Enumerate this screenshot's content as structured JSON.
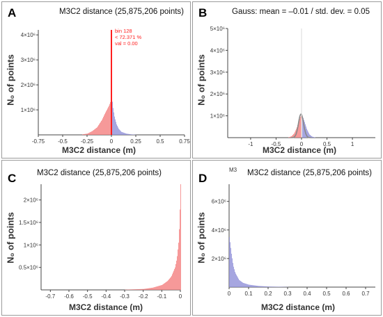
{
  "colors": {
    "red": "#ff1f1f",
    "red_fill": "#f48080",
    "blue_fill": "#9090d8",
    "blue_line": "#6a6ab8",
    "gauss": "#888888"
  },
  "panels": [
    {
      "letter": "A",
      "title": "M3C2 distance (25,875,206 points)",
      "ylabel": "N₀ of points",
      "xlabel": "M3C2 distance (m)",
      "annotations": [
        "bin 128",
        "< 72.371 %",
        "val = 0.00"
      ]
    },
    {
      "letter": "B",
      "title": "Gauss: mean = –0.01 / std. dev. = 0.05",
      "ylabel": "N₀ of points",
      "xlabel": "M3C2 distance (m)"
    },
    {
      "letter": "C",
      "title": "M3C2 distance (25,875,206 points)",
      "ylabel": "N₀ of points",
      "xlabel": "M3C2 distance (m)"
    },
    {
      "letter": "D",
      "tag": "M3",
      "title": "M3C2 distance (25,875,206 points)",
      "ylabel": "N₀ of points",
      "xlabel": "M3C2 distance (m)"
    }
  ],
  "chart_data": [
    {
      "type": "bar",
      "title": "M3C2 distance (25,875,206 points)",
      "xlabel": "M3C2 distance (m)",
      "ylabel": "N₀ of points",
      "xlim": [
        -0.75,
        0.75
      ],
      "ylim": [
        0,
        4200000
      ],
      "xticks": [
        "-0.75",
        "-0.5",
        "-0.25",
        "0",
        "0.25",
        "0.5",
        "0.75"
      ],
      "xtick_values": [
        -0.75,
        -0.5,
        -0.25,
        0,
        0.25,
        0.5,
        0.75
      ],
      "yticks": [
        "1×10⁶",
        "2×10⁶",
        "3×10⁶",
        "4×10⁶"
      ],
      "ytick_values": [
        1000000,
        2000000,
        3000000,
        4000000
      ],
      "peak": {
        "x": 0.0,
        "y": 4200000
      },
      "series": [
        {
          "color": "red",
          "x": [
            -0.3,
            -0.25,
            -0.2,
            -0.15,
            -0.1,
            -0.07,
            -0.05,
            -0.03,
            -0.015,
            -0.005
          ],
          "y": [
            20000,
            50000,
            150000,
            300000,
            600000,
            850000,
            1000000,
            1150000,
            1300000,
            1450000
          ]
        },
        {
          "color": "blue",
          "x": [
            0.005,
            0.015,
            0.03,
            0.05,
            0.07,
            0.1,
            0.15,
            0.2,
            0.25
          ],
          "y": [
            1400000,
            1050000,
            700000,
            420000,
            250000,
            120000,
            50000,
            20000,
            5000
          ]
        }
      ]
    },
    {
      "type": "bar",
      "title": "Gauss: mean = –0.01 / std. dev. = 0.05",
      "xlabel": "M3C2 distance (m)",
      "ylabel": "N₀ of points",
      "xlim": [
        -1.45,
        1.45
      ],
      "ylim": [
        0,
        5000000
      ],
      "xticks": [
        "-1",
        "-0.5",
        "0",
        "0.5",
        "1"
      ],
      "xtick_values": [
        -1,
        -0.5,
        0,
        0.5,
        1
      ],
      "yticks": [
        "1×10⁶",
        "2×10⁶",
        "3×10⁶",
        "4×10⁶",
        "5×10⁶"
      ],
      "ytick_values": [
        1000000,
        2000000,
        3000000,
        4000000,
        5000000
      ],
      "gauss": {
        "mean": -0.01,
        "std": 0.05,
        "peak": 1080000
      },
      "series": [
        {
          "color": "red",
          "x": [
            -0.25,
            -0.2,
            -0.15,
            -0.1,
            -0.05,
            -0.02
          ],
          "y": [
            20000,
            70000,
            200000,
            450000,
            800000,
            1000000
          ]
        },
        {
          "color": "blue",
          "x": [
            0.02,
            0.05,
            0.1,
            0.15,
            0.2,
            0.25
          ],
          "y": [
            950000,
            750000,
            380000,
            150000,
            50000,
            15000
          ]
        }
      ]
    },
    {
      "type": "bar",
      "title": "M3C2 distance (25,875,206 points)",
      "xlabel": "M3C2 distance (m)",
      "ylabel": "N₀ of points",
      "xlim": [
        -0.75,
        0.0
      ],
      "ylim": [
        0,
        2350000
      ],
      "xticks": [
        "-0.7",
        "-0.6",
        "-0.5",
        "-0.4",
        "-0.3",
        "-0.2",
        "-0.1",
        "0"
      ],
      "xtick_values": [
        -0.7,
        -0.6,
        -0.5,
        -0.4,
        -0.3,
        -0.2,
        -0.1,
        0
      ],
      "yticks": [
        "0.5×10⁶",
        "1×10⁶",
        "1.5×10⁶",
        "2×10⁶"
      ],
      "ytick_values": [
        500000,
        1000000,
        1500000,
        2000000
      ],
      "series": [
        {
          "color": "red",
          "x": [
            -0.3,
            -0.2,
            -0.15,
            -0.1,
            -0.07,
            -0.05,
            -0.03,
            -0.02,
            -0.01,
            -0.005,
            0.0
          ],
          "y": [
            5000,
            20000,
            50000,
            110000,
            200000,
            300000,
            500000,
            700000,
            1100000,
            1600000,
            2350000
          ]
        }
      ]
    },
    {
      "type": "bar",
      "title": "M3C2 distance (25,875,206 points)",
      "xlabel": "M3C2 distance (m)",
      "ylabel": "N₀ of points",
      "xlim": [
        0.0,
        0.75
      ],
      "ylim": [
        0,
        7200000
      ],
      "xticks": [
        "0",
        "0.1",
        "0.2",
        "0.3",
        "0.4",
        "0.5",
        "0.6",
        "0.7"
      ],
      "xtick_values": [
        0,
        0.1,
        0.2,
        0.3,
        0.4,
        0.5,
        0.6,
        0.7
      ],
      "yticks": [
        "2×10⁶",
        "4×10⁶",
        "6×10⁶"
      ],
      "ytick_values": [
        2000000,
        4000000,
        6000000
      ],
      "series": [
        {
          "color": "blue",
          "x": [
            0.0,
            0.005,
            0.01,
            0.02,
            0.03,
            0.05,
            0.07,
            0.1,
            0.15,
            0.2,
            0.3
          ],
          "y": [
            3500000,
            3000000,
            2400000,
            1500000,
            1000000,
            500000,
            300000,
            170000,
            80000,
            40000,
            10000
          ]
        }
      ]
    }
  ]
}
